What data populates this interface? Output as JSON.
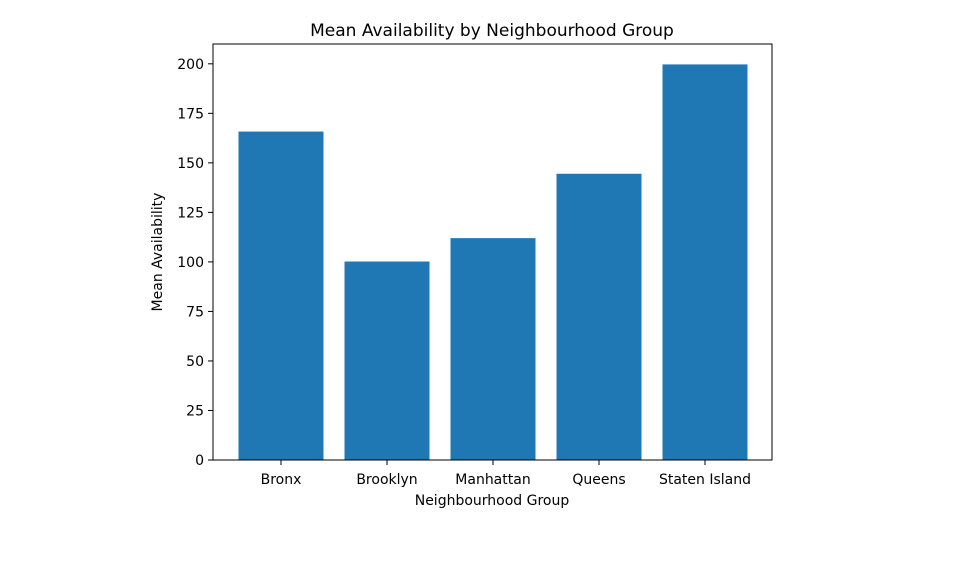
{
  "chart_data": {
    "type": "bar",
    "title": "Mean Availability by Neighbourhood Group",
    "xlabel": "Neighbourhood Group",
    "ylabel": "Mean Availability",
    "categories": [
      "Bronx",
      "Brooklyn",
      "Manhattan",
      "Queens",
      "Staten Island"
    ],
    "values": [
      165.8,
      100.2,
      112.0,
      144.5,
      199.7
    ],
    "ylim": [
      0,
      210
    ],
    "yticks": [
      0,
      25,
      50,
      75,
      100,
      125,
      150,
      175,
      200
    ],
    "bar_color": "#1f77b4",
    "grid": false,
    "legend": "none"
  }
}
